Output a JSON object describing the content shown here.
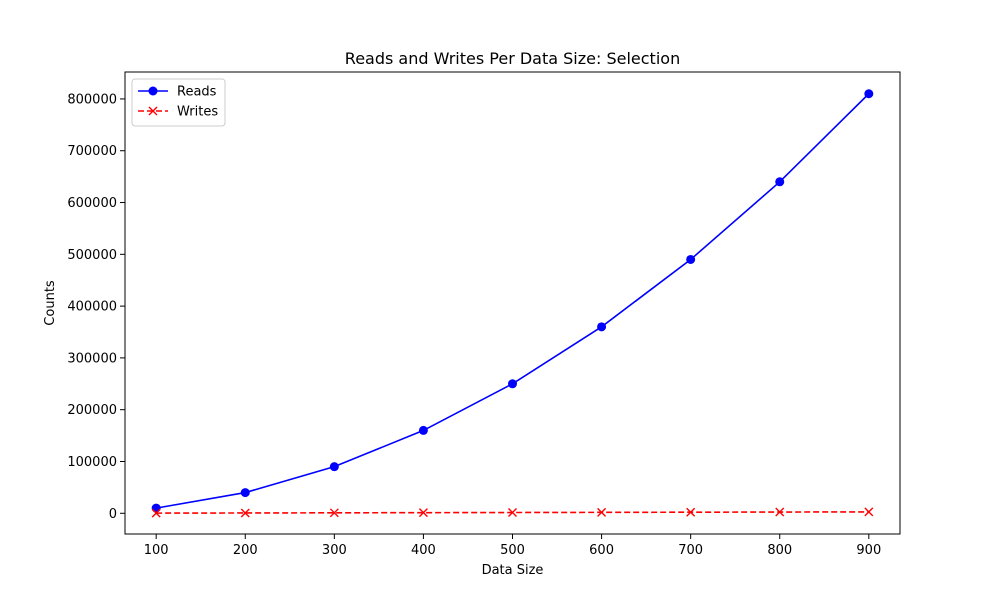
{
  "chart_data": {
    "type": "line",
    "title": "Reads and Writes Per Data Size: Selection",
    "xlabel": "Data Size",
    "ylabel": "Counts",
    "x": [
      100,
      200,
      300,
      400,
      500,
      600,
      700,
      800,
      900
    ],
    "xticks": [
      100,
      200,
      300,
      400,
      500,
      600,
      700,
      800,
      900
    ],
    "xlim": [
      65,
      935
    ],
    "yticks": [
      0,
      100000,
      200000,
      300000,
      400000,
      500000,
      600000,
      700000,
      800000
    ],
    "ylim": [
      -40000,
      852000
    ],
    "grid": false,
    "legend_position": "top-left",
    "series": [
      {
        "name": "Reads",
        "color": "#0000ff",
        "marker": "circle",
        "line_style": "solid",
        "values": [
          10000,
          40000,
          90000,
          160000,
          250000,
          360000,
          490000,
          640000,
          810000
        ]
      },
      {
        "name": "Writes",
        "color": "#ff0000",
        "marker": "x",
        "line_style": "dashed",
        "values": [
          300,
          600,
          900,
          1200,
          1500,
          1800,
          2100,
          2400,
          2700
        ]
      }
    ]
  }
}
